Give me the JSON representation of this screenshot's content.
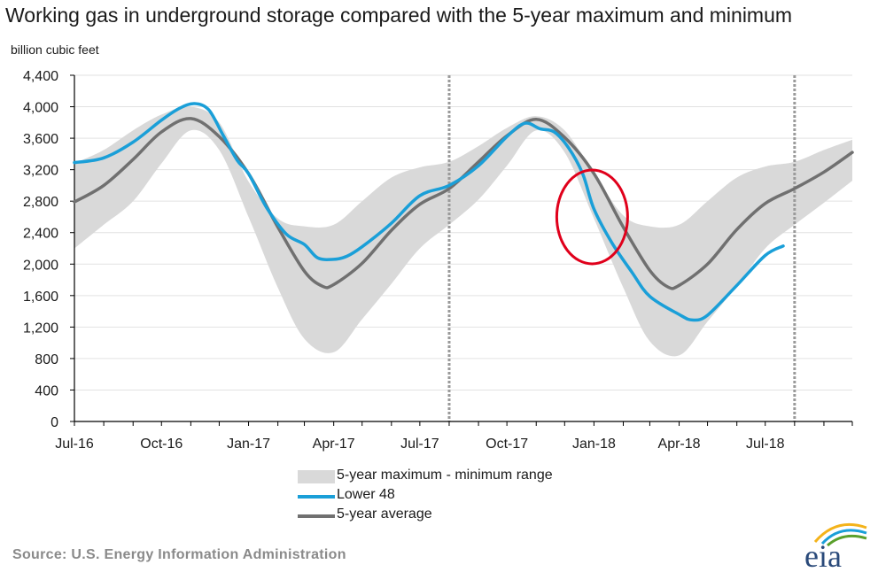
{
  "title": "Working gas in underground  storage compared with the 5-year maximum and minimum",
  "unit_label": "billion cubic feet",
  "source": "Source:  U.S. Energy Information Administration",
  "logo_text": "eia",
  "colors": {
    "lower48": "#1a9fd8",
    "average": "#707070",
    "band": "#d9d9d9",
    "highlight": "#e0001b",
    "divider": "#9a9a9a"
  },
  "legend": [
    {
      "key": "band",
      "label": "5-year maximum - minimum range"
    },
    {
      "key": "lower48",
      "label": "Lower 48"
    },
    {
      "key": "average",
      "label": "5-year average"
    }
  ],
  "chart_data": {
    "type": "line",
    "title": "Working gas in underground  storage compared with the 5-year maximum and minimum",
    "ylabel": "billion cubic feet",
    "ylim": [
      0,
      4400
    ],
    "yticks": [
      0,
      400,
      800,
      1200,
      1600,
      2000,
      2400,
      2800,
      3200,
      3600,
      4000,
      4400
    ],
    "ytick_labels": [
      "0",
      "400",
      "800",
      "1,200",
      "1,600",
      "2,000",
      "2,400",
      "2,800",
      "3,200",
      "3,600",
      "4,000",
      "4,400"
    ],
    "x_start": "2016-07-01",
    "x_end": "2018-10-01",
    "xticks": [
      "2016-07-01",
      "2016-10-01",
      "2017-01-01",
      "2017-04-01",
      "2017-07-01",
      "2017-10-01",
      "2018-01-01",
      "2018-04-01",
      "2018-07-01"
    ],
    "xtick_labels": [
      "Jul-16",
      "Oct-16",
      "Jan-17",
      "Apr-17",
      "Jul-17",
      "Oct-17",
      "Jan-18",
      "Apr-18",
      "Jul-18"
    ],
    "reference_lines": [
      "2017-08-01",
      "2018-08-01"
    ],
    "grid": "horizontal",
    "legend_position": "bottom-center",
    "annotations": [
      {
        "type": "ellipse",
        "center": [
          "2018-01-01",
          2600
        ],
        "description": "highlight on Lower 48 falling below 5-year average"
      }
    ],
    "band": {
      "name": "5-year maximum - minimum range",
      "x": [
        "2016-07-01",
        "2016-08-01",
        "2016-09-01",
        "2016-10-01",
        "2016-11-01",
        "2016-12-01",
        "2017-01-01",
        "2017-02-01",
        "2017-03-01",
        "2017-04-01",
        "2017-05-01",
        "2017-06-01",
        "2017-07-01",
        "2017-08-01",
        "2017-09-01",
        "2017-10-01",
        "2017-11-01",
        "2017-12-01",
        "2018-01-01",
        "2018-02-01",
        "2018-03-01",
        "2018-04-01",
        "2018-05-01",
        "2018-06-01",
        "2018-07-01",
        "2018-08-01",
        "2018-09-01",
        "2018-10-01"
      ],
      "min": [
        2200,
        2500,
        2800,
        3280,
        3700,
        3450,
        2600,
        1700,
        1050,
        880,
        1300,
        1750,
        2200,
        2500,
        2820,
        3250,
        3700,
        3420,
        2580,
        1700,
        1020,
        840,
        1270,
        1720,
        2200,
        2500,
        2780,
        3060
      ],
      "max": [
        3280,
        3450,
        3700,
        3900,
        4000,
        3800,
        3050,
        2580,
        2480,
        2500,
        2800,
        3100,
        3230,
        3300,
        3500,
        3730,
        3880,
        3700,
        3150,
        2620,
        2480,
        2500,
        2800,
        3100,
        3240,
        3300,
        3450,
        3580
      ]
    },
    "series": [
      {
        "name": "Lower 48",
        "x": [
          "2016-07-01",
          "2016-08-01",
          "2016-09-01",
          "2016-10-01",
          "2016-10-20",
          "2016-11-05",
          "2016-11-20",
          "2016-12-05",
          "2016-12-20",
          "2017-01-01",
          "2017-01-20",
          "2017-02-10",
          "2017-03-01",
          "2017-03-15",
          "2017-04-01",
          "2017-04-15",
          "2017-05-01",
          "2017-06-01",
          "2017-07-01",
          "2017-08-01",
          "2017-09-01",
          "2017-10-01",
          "2017-10-20",
          "2017-11-05",
          "2017-11-20",
          "2017-12-05",
          "2017-12-20",
          "2018-01-01",
          "2018-01-20",
          "2018-02-10",
          "2018-03-01",
          "2018-04-01",
          "2018-04-15",
          "2018-05-01",
          "2018-06-01",
          "2018-07-01",
          "2018-07-20"
        ],
        "values": [
          3290,
          3350,
          3550,
          3830,
          3980,
          4040,
          3960,
          3640,
          3320,
          3150,
          2720,
          2380,
          2250,
          2080,
          2060,
          2100,
          2220,
          2520,
          2870,
          3000,
          3250,
          3620,
          3790,
          3720,
          3680,
          3480,
          3150,
          2700,
          2270,
          1900,
          1590,
          1360,
          1290,
          1350,
          1730,
          2110,
          2230
        ]
      },
      {
        "name": "5-year average",
        "x": [
          "2016-07-01",
          "2016-08-01",
          "2016-09-01",
          "2016-10-01",
          "2016-11-01",
          "2016-12-01",
          "2017-01-01",
          "2017-02-01",
          "2017-03-01",
          "2017-03-20",
          "2017-04-01",
          "2017-05-01",
          "2017-06-01",
          "2017-07-01",
          "2017-08-01",
          "2017-09-01",
          "2017-10-01",
          "2017-11-01",
          "2017-12-01",
          "2018-01-01",
          "2018-02-01",
          "2018-03-01",
          "2018-03-20",
          "2018-04-01",
          "2018-05-01",
          "2018-06-01",
          "2018-07-01",
          "2018-08-01",
          "2018-09-01",
          "2018-10-01"
        ],
        "values": [
          2790,
          3000,
          3330,
          3680,
          3850,
          3620,
          3150,
          2470,
          1910,
          1720,
          1740,
          2010,
          2430,
          2760,
          2960,
          3300,
          3630,
          3840,
          3610,
          3150,
          2470,
          1920,
          1710,
          1730,
          2000,
          2440,
          2770,
          2960,
          3170,
          3420
        ]
      }
    ]
  }
}
